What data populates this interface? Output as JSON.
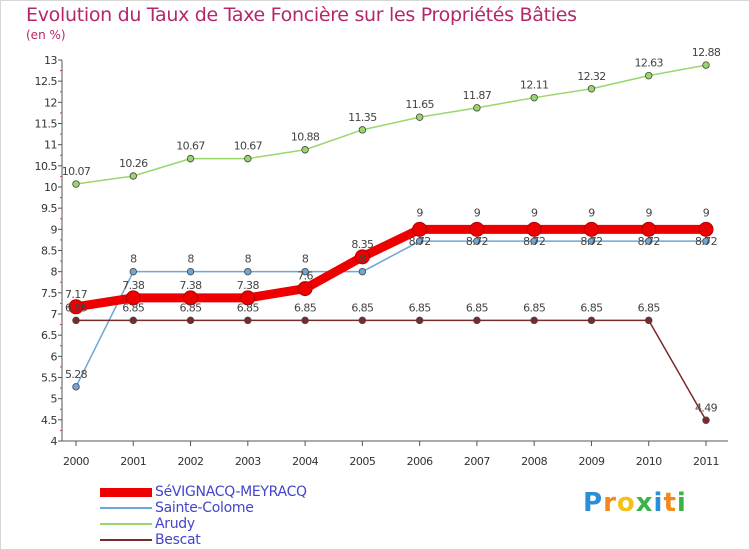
{
  "header": {
    "title": "Evolution du Taux de Taxe Foncière sur les Propriétés Bâties",
    "unit": "(en %)"
  },
  "logo": {
    "letters": [
      "P",
      "r",
      "o",
      "x",
      "i",
      "t",
      "i"
    ],
    "colors": [
      "#2a8fd6",
      "#f28a1a",
      "#f2c21a",
      "#3bb34a",
      "#2a8fd6",
      "#f28a1a",
      "#3bb34a"
    ]
  },
  "chart_data": {
    "type": "line",
    "title": "Evolution du Taux de Taxe Foncière sur les Propriétés Bâties",
    "ylabel": "(en %)",
    "xlabel": "",
    "x": [
      "2000",
      "2001",
      "2002",
      "2003",
      "2004",
      "2005",
      "2006",
      "2007",
      "2008",
      "2009",
      "2010",
      "2011"
    ],
    "ylim": [
      4,
      13
    ],
    "yticks": [
      "4",
      "4.5",
      "5",
      "5.5",
      "6",
      "6.5",
      "7",
      "7.5",
      "8",
      "8.5",
      "9",
      "9.5",
      "10",
      "10.5",
      "11",
      "11.5",
      "12",
      "12.5",
      "13"
    ],
    "grid": false,
    "legend_position": "bottom-left",
    "series": [
      {
        "name": "SéVIGNACQ-MEYRACQ",
        "color": "#ee0000",
        "values": [
          7.17,
          7.38,
          7.38,
          7.38,
          7.6,
          8.35,
          9,
          9,
          9,
          9,
          9,
          9
        ],
        "labels": [
          "7.17",
          "7.38",
          "7.38",
          "7.38",
          "7.6",
          "8.35",
          "9",
          "9",
          "9",
          "9",
          "9",
          "9"
        ]
      },
      {
        "name": "Sainte-Colome",
        "color": "#6ea6d6",
        "values": [
          5.28,
          8,
          8,
          8,
          8,
          8,
          8.72,
          8.72,
          8.72,
          8.72,
          8.72,
          8.72
        ],
        "labels": [
          "5.28",
          "8",
          "8",
          "8",
          "8",
          "8",
          "8.72",
          "8.72",
          "8.72",
          "8.72",
          "8.72",
          "8.72"
        ]
      },
      {
        "name": "Arudy",
        "color": "#9ad66e",
        "values": [
          10.07,
          10.26,
          10.67,
          10.67,
          10.88,
          11.35,
          11.65,
          11.87,
          12.11,
          12.32,
          12.63,
          12.88
        ],
        "labels": [
          "10.07",
          "10.26",
          "10.67",
          "10.67",
          "10.88",
          "11.35",
          "11.65",
          "11.87",
          "12.11",
          "12.32",
          "12.63",
          "12.88"
        ]
      },
      {
        "name": "Bescat",
        "color": "#7a2a2a",
        "values": [
          6.85,
          6.85,
          6.85,
          6.85,
          6.85,
          6.85,
          6.85,
          6.85,
          6.85,
          6.85,
          6.85,
          4.49
        ],
        "labels": [
          "6.85",
          "6.85",
          "6.85",
          "6.85",
          "6.85",
          "6.85",
          "6.85",
          "6.85",
          "6.85",
          "6.85",
          "6.85",
          "4.49"
        ]
      }
    ]
  }
}
